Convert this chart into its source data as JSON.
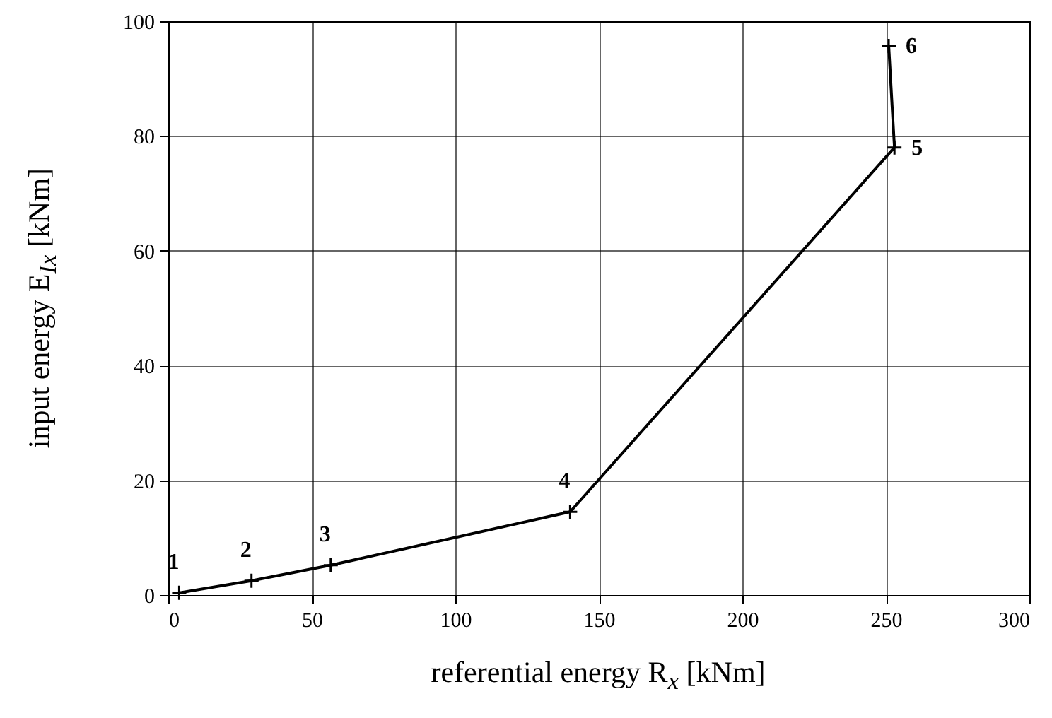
{
  "chart_data": {
    "type": "line",
    "xlabel": "referential energy R$_{x}$  [kNm]",
    "ylabel": "input energy E$_{Ix}$  [kNm]",
    "x": [
      3.8,
      29,
      56.6,
      140,
      253,
      251
    ],
    "series": [
      {
        "color": "#000000",
        "values": [
          0.4,
          2.5,
          5.2,
          14.5,
          78,
          95.7
        ]
      }
    ],
    "xlim": [
      0,
      300
    ],
    "xticks": [
      0,
      50,
      100,
      150,
      200,
      250,
      300
    ],
    "ylim": [
      0,
      100
    ],
    "yticks": [
      0,
      20,
      40,
      60,
      80,
      100
    ],
    "grid": true,
    "marker": "cross",
    "line_style": "solid",
    "annotations": [
      {
        "text": "1",
        "x": 3.8,
        "y": 0.4
      },
      {
        "text": "2",
        "x": 29,
        "y": 2.5
      },
      {
        "text": "3",
        "x": 56.6,
        "y": 5.2
      },
      {
        "text": "4",
        "x": 140,
        "y": 14.5
      },
      {
        "text": "5",
        "x": 253,
        "y": 78
      },
      {
        "text": "6",
        "x": 251,
        "y": 95.7
      }
    ]
  }
}
